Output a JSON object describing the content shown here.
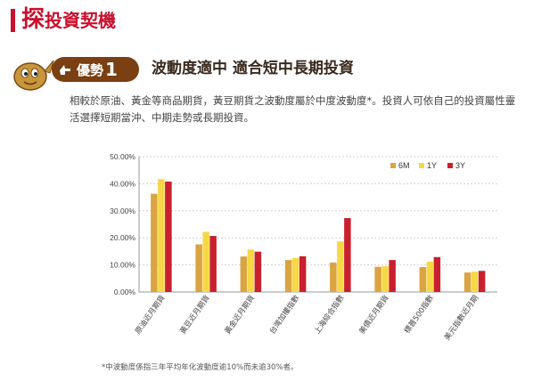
{
  "header": {
    "title_first": "探",
    "title_rest": "投資契機"
  },
  "section": {
    "badge_label": "優勢",
    "badge_number": "1",
    "title": "波動度適中 適合短中長期投資",
    "body": "相較於原油、黃金等商品期貨，黃豆期貨之波動度屬於中度波動度*。投資人可依自己的投資屬性靈活選擇短期當沖、中期走勢或長期投資。"
  },
  "icons": {
    "mascot": "soybean-mascot-icon",
    "badge": "hand-pointing-icon"
  },
  "colors": {
    "brand_red": "#c8102e",
    "badge_brown": "#7a3f12"
  },
  "chart_data": {
    "type": "bar",
    "categories": [
      "原油近月期貨",
      "黃豆近月期貨",
      "黃金近月期貨",
      "台灣加權指數",
      "上海綜合指數",
      "美債近月期貨",
      "標普500指數",
      "美元指數近月期"
    ],
    "series": [
      {
        "name": "6M",
        "color": "#d9a441",
        "values": [
          36.3,
          17.6,
          13.1,
          11.8,
          10.9,
          9.3,
          9.2,
          7.2
        ]
      },
      {
        "name": "1Y",
        "color": "#f6d847",
        "values": [
          41.7,
          22.2,
          15.7,
          12.6,
          18.7,
          9.6,
          11.2,
          7.5
        ]
      },
      {
        "name": "3Y",
        "color": "#c8202e",
        "values": [
          40.8,
          20.7,
          14.9,
          13.2,
          27.3,
          11.8,
          12.9,
          7.8
        ]
      }
    ],
    "yticks": [
      "0.00%",
      "10.00%",
      "20.00%",
      "30.00%",
      "40.00%",
      "50.00%"
    ],
    "ylim": [
      0,
      50
    ],
    "grid": true,
    "legend_position": "top-right"
  },
  "footnote": "*中波動度係指三年平均年化波動度逾10%而未逾30%者。"
}
